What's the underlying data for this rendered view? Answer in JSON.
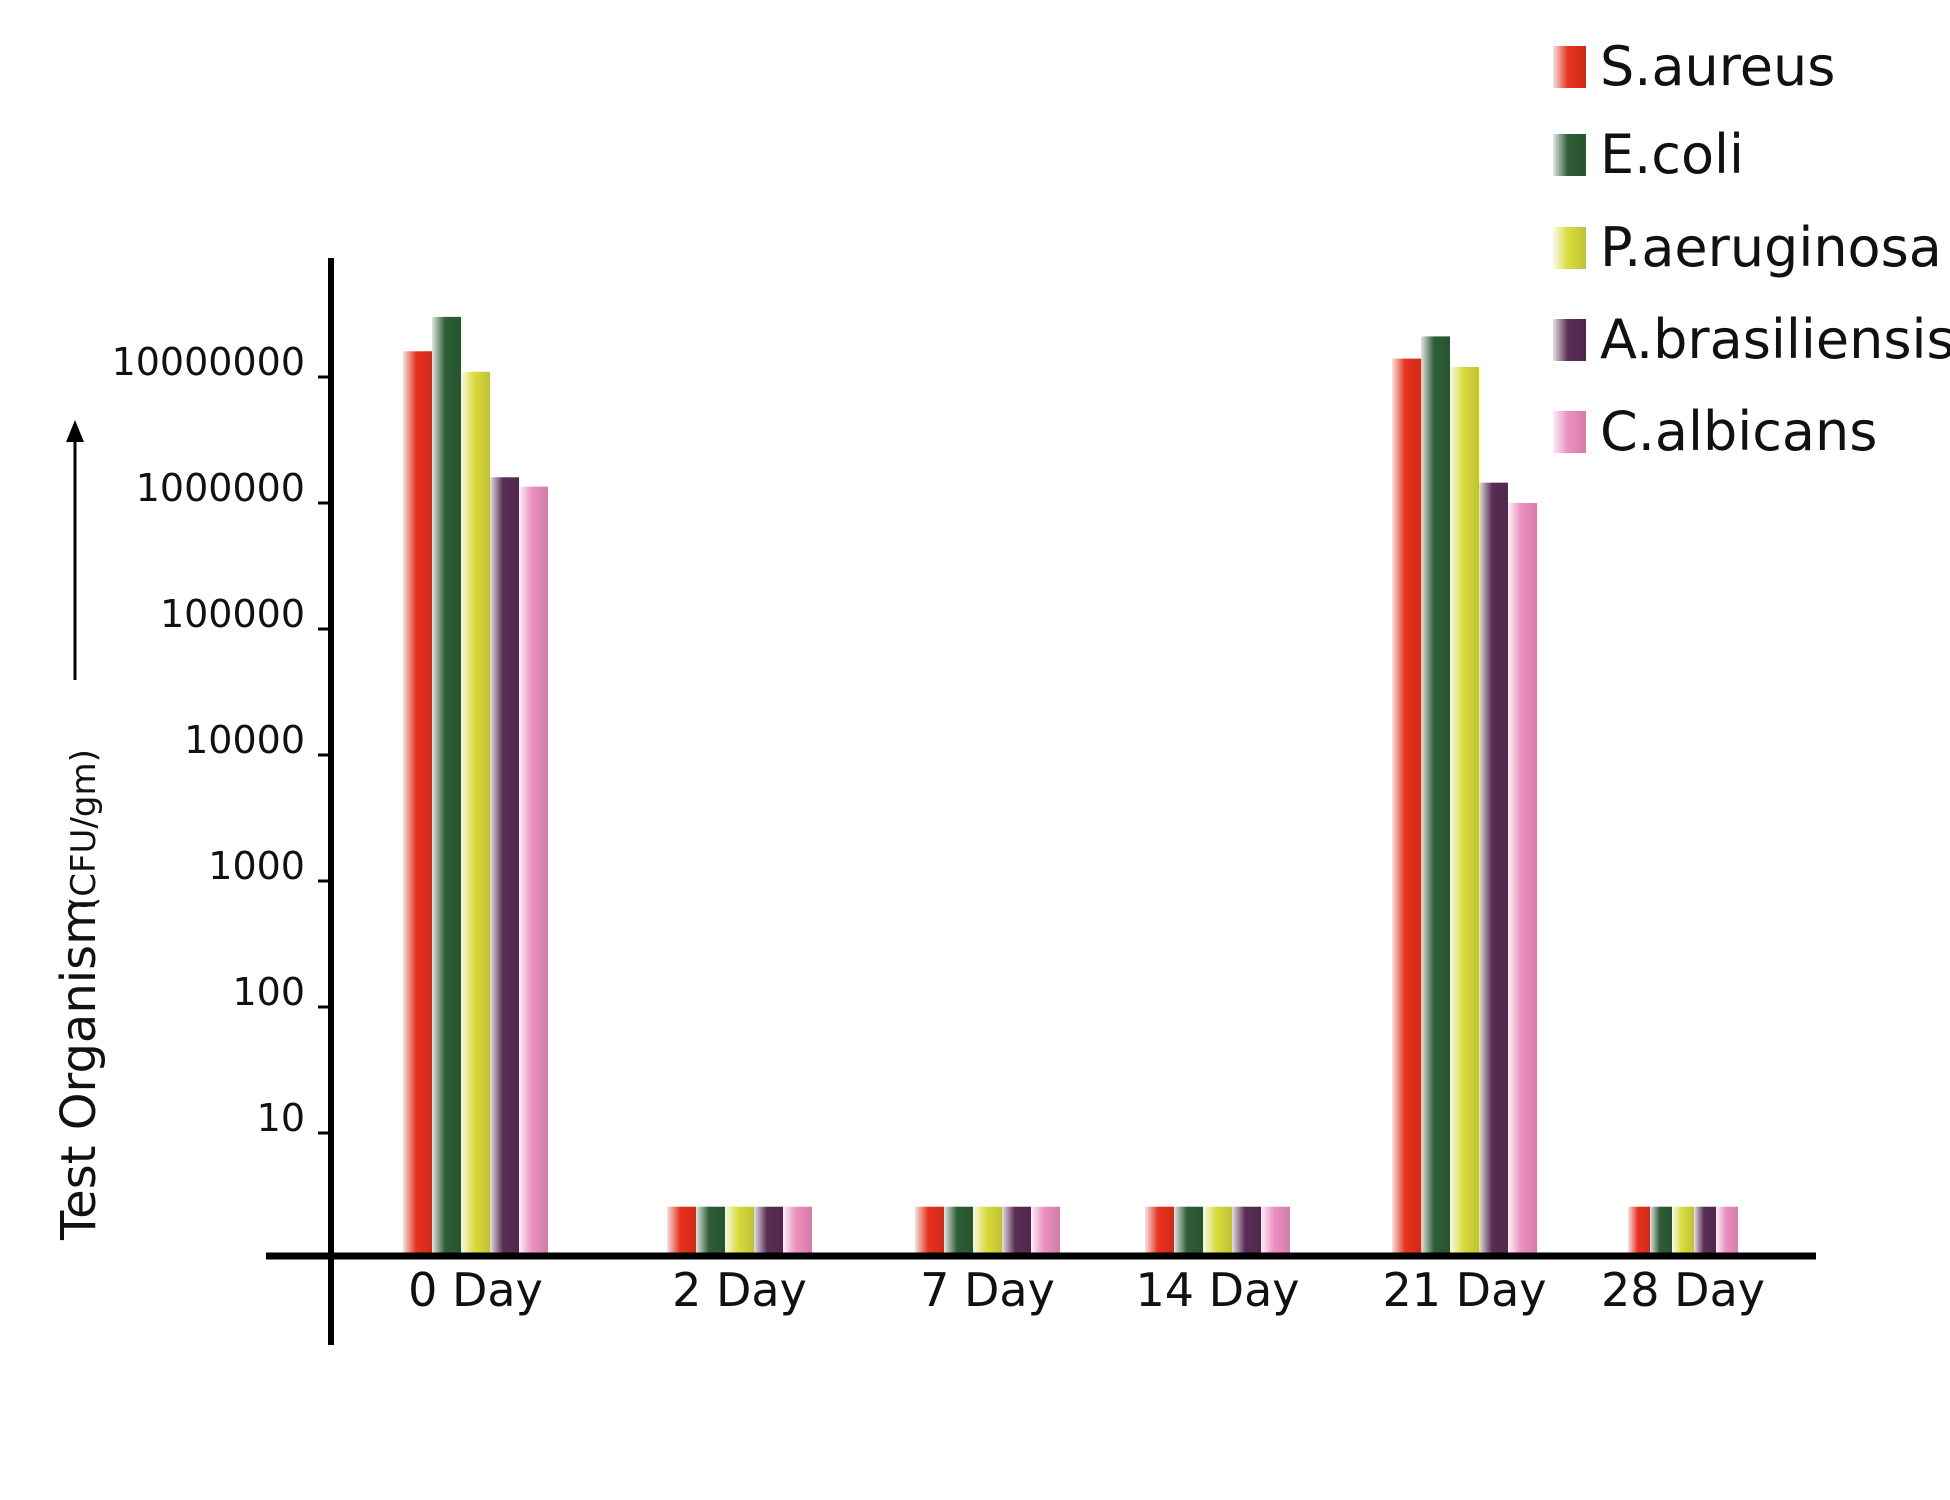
{
  "chart_data": {
    "type": "bar",
    "y_scale": "log",
    "ylabel": "Test Organism",
    "ylabel_unit": "(CFU/gm)",
    "y_ticks": [
      "10",
      "100",
      "1000",
      "10000",
      "100000",
      "1000000",
      "10000000"
    ],
    "categories": [
      "0 Day",
      "2 Day",
      "7 Day",
      "14 Day",
      "21 Day",
      "28 Day"
    ],
    "legend_position": "top-right",
    "grid": false,
    "series": [
      {
        "name": "S.aureus",
        "color": "#e8321e",
        "values": [
          16000000,
          2.6,
          2.6,
          2.6,
          14000000,
          2.6
        ]
      },
      {
        "name": "E.coli",
        "color": "#2e5e36",
        "values": [
          30000000,
          2.6,
          2.6,
          2.6,
          21000000,
          2.6
        ]
      },
      {
        "name": "P.aeruginosa",
        "color": "#d9dc3c",
        "values": [
          11000000,
          2.6,
          2.6,
          2.6,
          12000000,
          2.6
        ]
      },
      {
        "name": "A.brasiliensis",
        "color": "#5a2d55",
        "values": [
          1600000,
          2.6,
          2.6,
          2.6,
          1450000,
          2.6
        ]
      },
      {
        "name": "C.albicans",
        "color": "#ee8fc0",
        "values": [
          1350000,
          2.6,
          2.6,
          2.6,
          1000000,
          2.6
        ]
      }
    ]
  }
}
